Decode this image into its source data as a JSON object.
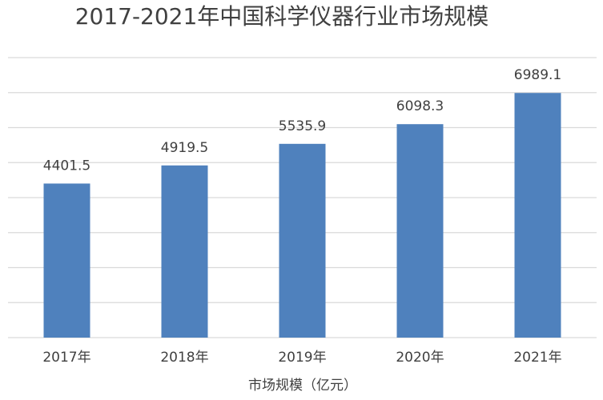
{
  "chart_data": {
    "type": "bar",
    "title": "2017-2021年中国科学仪器行业市场规模",
    "categories": [
      "2017年",
      "2018年",
      "2019年",
      "2020年",
      "2021年"
    ],
    "values": [
      4401.5,
      4919.5,
      5535.9,
      6098.3,
      6989.1
    ],
    "color": "#4f81bd",
    "x_label": "市场规模（亿元）",
    "ylim": [
      0,
      8000
    ],
    "yticks": [
      0,
      1000,
      2000,
      3000,
      4000,
      5000,
      6000,
      7000,
      8000
    ],
    "grid": true
  }
}
